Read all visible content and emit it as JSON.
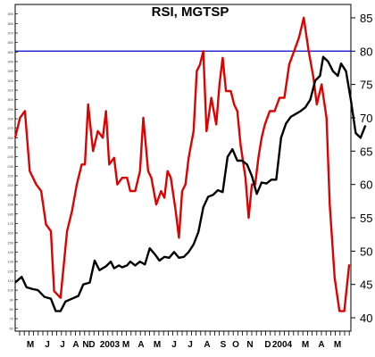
{
  "chart_data": {
    "type": "line",
    "title": "RSI, MGTSP",
    "xlabel": "",
    "ylabel": "",
    "grid": false,
    "y_right": {
      "ticks": [
        40,
        45,
        50,
        55,
        60,
        65,
        70,
        75,
        80,
        85
      ],
      "range": [
        38,
        87
      ]
    },
    "y_left": {
      "ticks": [
        60,
        70,
        80,
        90,
        100,
        110,
        120,
        130,
        140,
        150,
        160,
        170,
        180,
        190,
        200,
        210,
        220,
        230,
        240,
        250,
        260,
        270,
        280,
        290,
        300,
        310,
        320,
        330,
        340,
        350,
        360,
        370,
        380,
        390
      ],
      "range": [
        57,
        400
      ]
    },
    "x_tick_labels": [
      "M",
      "J",
      "J",
      "A",
      "N",
      "D",
      "2003",
      "M",
      "A",
      "M",
      "J",
      "J",
      "A",
      "S",
      "O",
      "N",
      "D",
      "2004",
      "M",
      "A",
      "M"
    ],
    "reference_line": {
      "axis": "right",
      "value": 80,
      "color": "#0000cc"
    },
    "colors": {
      "rsi": "#e00000",
      "price": "#000000"
    },
    "series": [
      {
        "axis": "right",
        "color": "#e00000",
        "points": [
          [
            0,
            67
          ],
          [
            3,
            70
          ],
          [
            6,
            71
          ],
          [
            9,
            62
          ],
          [
            13,
            60
          ],
          [
            16,
            59
          ],
          [
            19,
            54
          ],
          [
            22,
            53
          ],
          [
            24,
            44
          ],
          [
            28,
            43
          ],
          [
            32,
            53
          ],
          [
            35,
            56
          ],
          [
            38,
            60
          ],
          [
            41,
            63
          ],
          [
            43,
            63
          ],
          [
            45,
            72
          ],
          [
            48,
            65
          ],
          [
            51,
            68
          ],
          [
            54,
            67
          ],
          [
            56,
            71
          ],
          [
            58,
            63
          ],
          [
            61,
            64
          ],
          [
            63,
            60
          ],
          [
            66,
            61
          ],
          [
            69,
            61
          ],
          [
            71,
            59
          ],
          [
            74,
            59
          ],
          [
            77,
            62
          ],
          [
            79,
            70
          ],
          [
            82,
            62
          ],
          [
            84,
            61
          ],
          [
            87,
            57
          ],
          [
            90,
            59
          ],
          [
            92,
            58
          ],
          [
            94,
            62
          ],
          [
            96,
            61
          ],
          [
            99,
            56
          ],
          [
            101,
            52
          ],
          [
            103,
            59
          ],
          [
            105,
            60
          ],
          [
            107,
            64
          ],
          [
            110,
            68
          ],
          [
            112,
            77
          ],
          [
            114,
            78
          ],
          [
            116,
            80
          ],
          [
            118,
            68
          ],
          [
            121,
            73
          ],
          [
            124,
            69
          ],
          [
            126,
            75
          ],
          [
            128,
            79
          ],
          [
            130,
            74
          ],
          [
            133,
            74
          ],
          [
            135,
            72
          ],
          [
            137,
            71
          ],
          [
            139,
            66
          ],
          [
            142,
            61
          ],
          [
            144,
            55
          ],
          [
            146,
            60
          ],
          [
            148,
            60
          ],
          [
            150,
            64
          ],
          [
            152,
            67
          ],
          [
            154,
            69
          ],
          [
            157,
            71
          ],
          [
            160,
            71
          ],
          [
            163,
            73
          ],
          [
            166,
            73
          ],
          [
            169,
            78
          ],
          [
            172,
            80
          ],
          [
            175,
            82
          ],
          [
            178,
            85
          ],
          [
            181,
            80
          ],
          [
            184,
            76
          ],
          [
            186,
            72
          ],
          [
            189,
            75
          ],
          [
            192,
            70
          ],
          [
            194,
            57
          ],
          [
            197,
            46
          ],
          [
            200,
            41
          ],
          [
            203,
            41
          ],
          [
            206,
            48
          ]
        ]
      },
      {
        "axis": "left",
        "color": "#000000",
        "points": [
          [
            0,
            108
          ],
          [
            4,
            114
          ],
          [
            7,
            103
          ],
          [
            11,
            101
          ],
          [
            14,
            100
          ],
          [
            18,
            93
          ],
          [
            22,
            91
          ],
          [
            25,
            78
          ],
          [
            28,
            78
          ],
          [
            31,
            88
          ],
          [
            35,
            91
          ],
          [
            39,
            94
          ],
          [
            42,
            106
          ],
          [
            46,
            108
          ],
          [
            49,
            131
          ],
          [
            52,
            121
          ],
          [
            56,
            125
          ],
          [
            59,
            130
          ],
          [
            61,
            123
          ],
          [
            64,
            126
          ],
          [
            66,
            124
          ],
          [
            69,
            126
          ],
          [
            71,
            130
          ],
          [
            74,
            126
          ],
          [
            77,
            130
          ],
          [
            80,
            127
          ],
          [
            83,
            144
          ],
          [
            86,
            138
          ],
          [
            89,
            131
          ],
          [
            92,
            135
          ],
          [
            95,
            134
          ],
          [
            98,
            140
          ],
          [
            101,
            134
          ],
          [
            104,
            135
          ],
          [
            107,
            140
          ],
          [
            110,
            148
          ],
          [
            113,
            161
          ],
          [
            116,
            187
          ],
          [
            119,
            198
          ],
          [
            122,
            200
          ],
          [
            125,
            205
          ],
          [
            128,
            203
          ],
          [
            131,
            240
          ],
          [
            134,
            248
          ],
          [
            137,
            236
          ],
          [
            140,
            236
          ],
          [
            143,
            232
          ],
          [
            146,
            220
          ],
          [
            149,
            201
          ],
          [
            152,
            213
          ],
          [
            155,
            212
          ],
          [
            158,
            216
          ],
          [
            161,
            216
          ],
          [
            164,
            260
          ],
          [
            167,
            275
          ],
          [
            170,
            282
          ],
          [
            173,
            285
          ],
          [
            176,
            288
          ],
          [
            179,
            292
          ],
          [
            182,
            300
          ],
          [
            185,
            320
          ],
          [
            188,
            325
          ],
          [
            190,
            345
          ],
          [
            193,
            340
          ],
          [
            196,
            330
          ],
          [
            199,
            325
          ],
          [
            201,
            338
          ],
          [
            204,
            330
          ],
          [
            207,
            300
          ],
          [
            210,
            265
          ],
          [
            213,
            260
          ],
          [
            216,
            273
          ]
        ]
      }
    ]
  }
}
